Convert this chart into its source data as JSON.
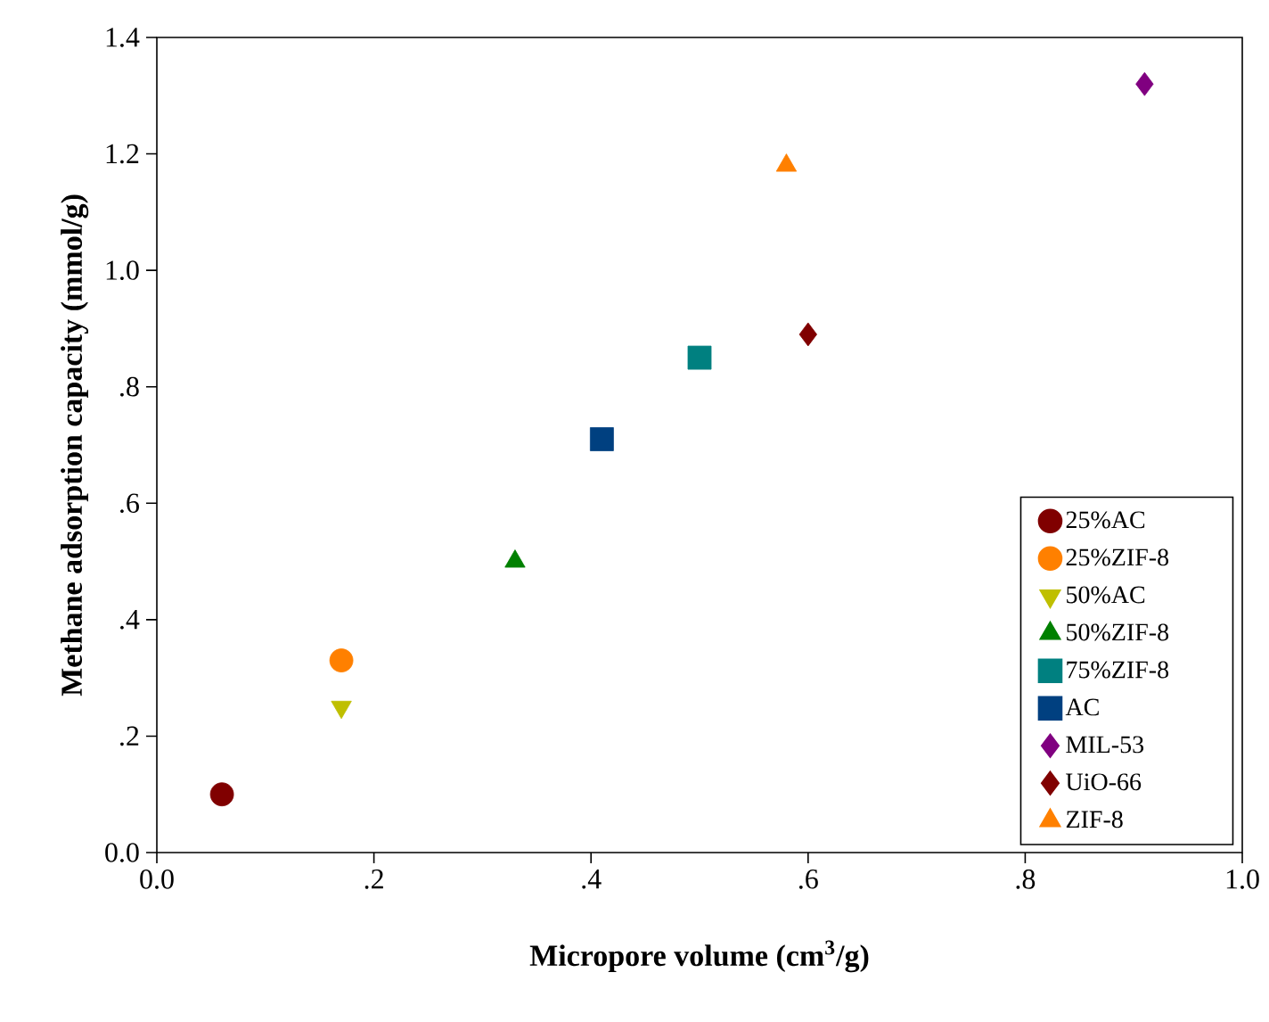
{
  "chart_data": {
    "type": "scatter",
    "xlabel": "Micropore volume (cm$^{3}$/g)",
    "ylabel": "Methane adsorption capacity (mmol/g)",
    "xlim": [
      0,
      1
    ],
    "ylim": [
      0,
      1.4
    ],
    "xticks": [
      {
        "value": 0,
        "label": "0.0"
      },
      {
        "value": 0.2,
        "label": ".2"
      },
      {
        "value": 0.4,
        "label": ".4"
      },
      {
        "value": 0.6,
        "label": ".6"
      },
      {
        "value": 0.8,
        "label": ".8"
      },
      {
        "value": 1.0,
        "label": "1.0"
      }
    ],
    "yticks": [
      {
        "value": 0,
        "label": "0.0"
      },
      {
        "value": 0.2,
        "label": ".2"
      },
      {
        "value": 0.4,
        "label": ".4"
      },
      {
        "value": 0.6,
        "label": ".6"
      },
      {
        "value": 0.8,
        "label": ".8"
      },
      {
        "value": 1.0,
        "label": "1.0"
      },
      {
        "value": 1.2,
        "label": "1.2"
      },
      {
        "value": 1.4,
        "label": "1.4"
      }
    ],
    "grid": false,
    "legend": "bottom right",
    "series": [
      {
        "name": "25%AC",
        "color": "#800000",
        "marker": "circle",
        "x": [
          0.06
        ],
        "values": [
          0.1
        ]
      },
      {
        "name": "25%ZIF-8",
        "color": "#ff8000",
        "marker": "circle",
        "x": [
          0.17
        ],
        "values": [
          0.33
        ]
      },
      {
        "name": "50%AC",
        "color": "#bfbf00",
        "marker": "triangle-down",
        "x": [
          0.17
        ],
        "values": [
          0.25
        ]
      },
      {
        "name": "50%ZIF-8",
        "color": "#008000",
        "marker": "triangle",
        "x": [
          0.33
        ],
        "values": [
          0.5
        ]
      },
      {
        "name": "75%ZIF-8",
        "color": "#008080",
        "marker": "square",
        "x": [
          0.5
        ],
        "values": [
          0.85
        ]
      },
      {
        "name": "AC",
        "color": "#004080",
        "marker": "square",
        "x": [
          0.41
        ],
        "values": [
          0.71
        ]
      },
      {
        "name": "MIL-53",
        "color": "#800080",
        "marker": "diamond",
        "x": [
          0.91
        ],
        "values": [
          1.32
        ]
      },
      {
        "name": "UiO-66",
        "color": "#800000",
        "marker": "diamond",
        "x": [
          0.6
        ],
        "values": [
          0.89
        ]
      },
      {
        "name": "ZIF-8",
        "color": "#ff8000",
        "marker": "triangle",
        "x": [
          0.58
        ],
        "values": [
          1.18
        ]
      }
    ]
  }
}
